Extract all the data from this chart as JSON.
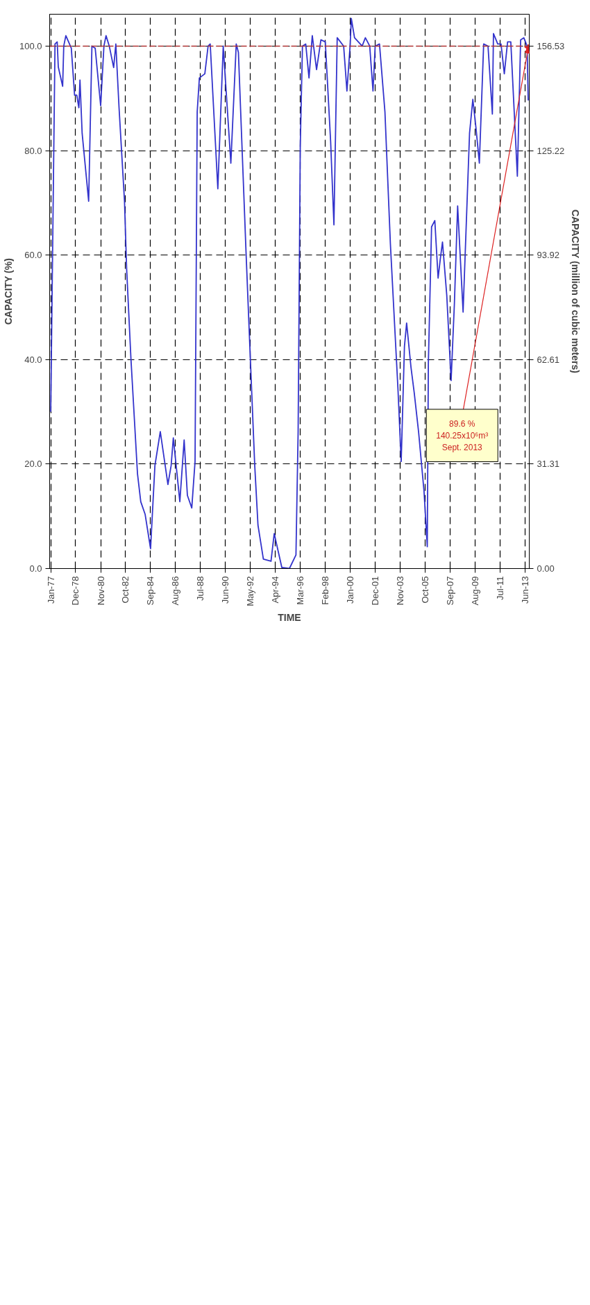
{
  "chart_data": {
    "type": "line",
    "xlabel": "TIME",
    "ylabel": "CAPACITY (%)",
    "y2label": "CAPACITY (million of cubic meters)",
    "x": [
      "1977-01",
      "1977-05",
      "1977-07",
      "1977-08",
      "1977-12",
      "1978-01",
      "1978-03",
      "1978-08",
      "1978-11",
      "1979-01",
      "1979-03",
      "1979-04",
      "1979-06",
      "1979-12",
      "1980-03",
      "1980-06",
      "1980-11",
      "1981-02",
      "1981-04",
      "1981-07",
      "1981-11",
      "1982-01",
      "1982-04",
      "1982-09",
      "1982-11",
      "1983-03",
      "1983-09",
      "1983-12",
      "1984-04",
      "1984-09",
      "1985-01",
      "1985-06",
      "1986-01",
      "1986-04",
      "1986-06",
      "1986-09",
      "1986-12",
      "1987-04",
      "1987-07",
      "1987-11",
      "1988-02",
      "1988-04",
      "1988-06",
      "1988-11",
      "1989-02",
      "1989-04",
      "1989-11",
      "1990-04",
      "1990-11",
      "1991-04",
      "1991-06",
      "1992-01",
      "1992-05",
      "1992-09",
      "1992-12",
      "1993-05",
      "1993-12",
      "1994-03",
      "1994-10",
      "1995-05",
      "1995-11",
      "1996-01",
      "1996-03",
      "1996-05",
      "1996-08",
      "1996-11",
      "1997-02",
      "1997-06",
      "1997-10",
      "1998-02",
      "1998-07",
      "1998-10",
      "1999-01",
      "1999-07",
      "1999-10",
      "2000-01",
      "2000-02",
      "2000-05",
      "2000-12",
      "2001-03",
      "2001-07",
      "2001-10",
      "2001-12",
      "2002-04",
      "2002-09",
      "2003-02",
      "2003-09",
      "2003-12",
      "2004-03",
      "2004-05",
      "2004-09",
      "2004-12",
      "2005-04",
      "2005-09",
      "2005-12",
      "2006-01",
      "2006-04",
      "2006-07",
      "2006-10",
      "2006-12",
      "2007-02",
      "2007-06",
      "2007-10",
      "2008-01",
      "2008-04",
      "2008-09",
      "2009-03",
      "2009-06",
      "2009-09",
      "2009-12",
      "2010-04",
      "2010-08",
      "2010-12",
      "2011-01",
      "2011-05",
      "2011-08",
      "2011-11",
      "2012-02",
      "2012-05",
      "2012-11",
      "2013-02",
      "2013-05",
      "2013-08",
      "2013-09"
    ],
    "series": [
      {
        "color": "#3333cc",
        "values": [
          30,
          100.4,
          100.8,
          96,
          92.3,
          100,
          102,
          99.6,
          90.6,
          90.6,
          88.2,
          93.5,
          83.3,
          70.3,
          100,
          99.6,
          88.6,
          100,
          102,
          100,
          95.9,
          100.4,
          88.2,
          70.3,
          57.2,
          40.1,
          18.1,
          12.8,
          10.4,
          3.8,
          19.7,
          26.2,
          16.1,
          19.7,
          25.0,
          18.9,
          12.8,
          24.6,
          14.0,
          11.6,
          20.5,
          87.4,
          93.9,
          94.7,
          100,
          100.4,
          72.7,
          100,
          77.6,
          100.4,
          98.8,
          60.5,
          40.1,
          19.7,
          8.3,
          1.8,
          1.4,
          6.7,
          0.2,
          0,
          2.6,
          26.2,
          80.8,
          100,
          100.4,
          93.9,
          102,
          95.5,
          101.2,
          100.8,
          81.7,
          65.8,
          101.6,
          100,
          91.4,
          100.4,
          105.3,
          101.6,
          100,
          101.6,
          100,
          91.4,
          100,
          100.4,
          87.4,
          62.1,
          34.4,
          20.5,
          42.5,
          47.0,
          38.5,
          33.6,
          26.2,
          14.8,
          4.2,
          39.3,
          65.4,
          66.6,
          55.6,
          59.2,
          62.5,
          52.3,
          36.0,
          50.7,
          69.4,
          49.1,
          83.3,
          89.8,
          84.1,
          77.6,
          100.4,
          100,
          87.0,
          102.4,
          100.4,
          100.4,
          94.7,
          100.8,
          100.8,
          75.1,
          101.2,
          101.6,
          100,
          89.6
        ]
      },
      {
        "type": "scatter",
        "x": [
          "2013-09"
        ],
        "values": [
          99.6
        ],
        "color": "#dd2222",
        "marker": "star"
      }
    ],
    "xlim": [
      "1976-12",
      "2013-10"
    ],
    "xticks": [
      {
        "value": "1977-01",
        "label": "Jan-77"
      },
      {
        "value": "1978-12",
        "label": "Dec-78"
      },
      {
        "value": "1980-11",
        "label": "Nov-80"
      },
      {
        "value": "1982-10",
        "label": "Oct-82"
      },
      {
        "value": "1984-09",
        "label": "Sep-84"
      },
      {
        "value": "1986-08",
        "label": "Aug-86"
      },
      {
        "value": "1988-07",
        "label": "Jul-88"
      },
      {
        "value": "1990-06",
        "label": "Jun-90"
      },
      {
        "value": "1992-05",
        "label": "May-92"
      },
      {
        "value": "1994-04",
        "label": "Apr-94"
      },
      {
        "value": "1996-03",
        "label": "Mar-96"
      },
      {
        "value": "1998-02",
        "label": "Feb-98"
      },
      {
        "value": "2000-01",
        "label": "Jan-00"
      },
      {
        "value": "2001-12",
        "label": "Dec-01"
      },
      {
        "value": "2003-11",
        "label": "Nov-03"
      },
      {
        "value": "2005-10",
        "label": "Oct-05"
      },
      {
        "value": "2007-09",
        "label": "Sep-07"
      },
      {
        "value": "2009-08",
        "label": "Aug-09"
      },
      {
        "value": "2011-07",
        "label": "Jul-11"
      },
      {
        "value": "2013-06",
        "label": "Jun-13"
      }
    ],
    "ylim": [
      0,
      106.1
    ],
    "yticks": [
      {
        "value": 0,
        "label": "0.0"
      },
      {
        "value": 20,
        "label": "20.0"
      },
      {
        "value": 40,
        "label": "40.0"
      },
      {
        "value": 60,
        "label": "60.0"
      },
      {
        "value": 80,
        "label": "80.0"
      },
      {
        "value": 100,
        "label": "100.0"
      }
    ],
    "y2lim": [
      0,
      166.1
    ],
    "y2ticks": [
      {
        "value": 0,
        "label": "0.00"
      },
      {
        "value": 31.306,
        "label": "31.31"
      },
      {
        "value": 62.612,
        "label": "62.61"
      },
      {
        "value": 93.918,
        "label": "93.92"
      },
      {
        "value": 125.224,
        "label": "125.22"
      },
      {
        "value": 156.53,
        "label": "156.53"
      }
    ],
    "ref_lines": [
      {
        "axis": "y",
        "value": 100,
        "color": "#b03030",
        "line_style": "dashed"
      }
    ],
    "annotations": [
      {
        "text": "89.6 %\n140.25x10⁶m³\nSept. 2013",
        "x": "2013-09",
        "y": 99.6
      }
    ],
    "grid": true
  }
}
